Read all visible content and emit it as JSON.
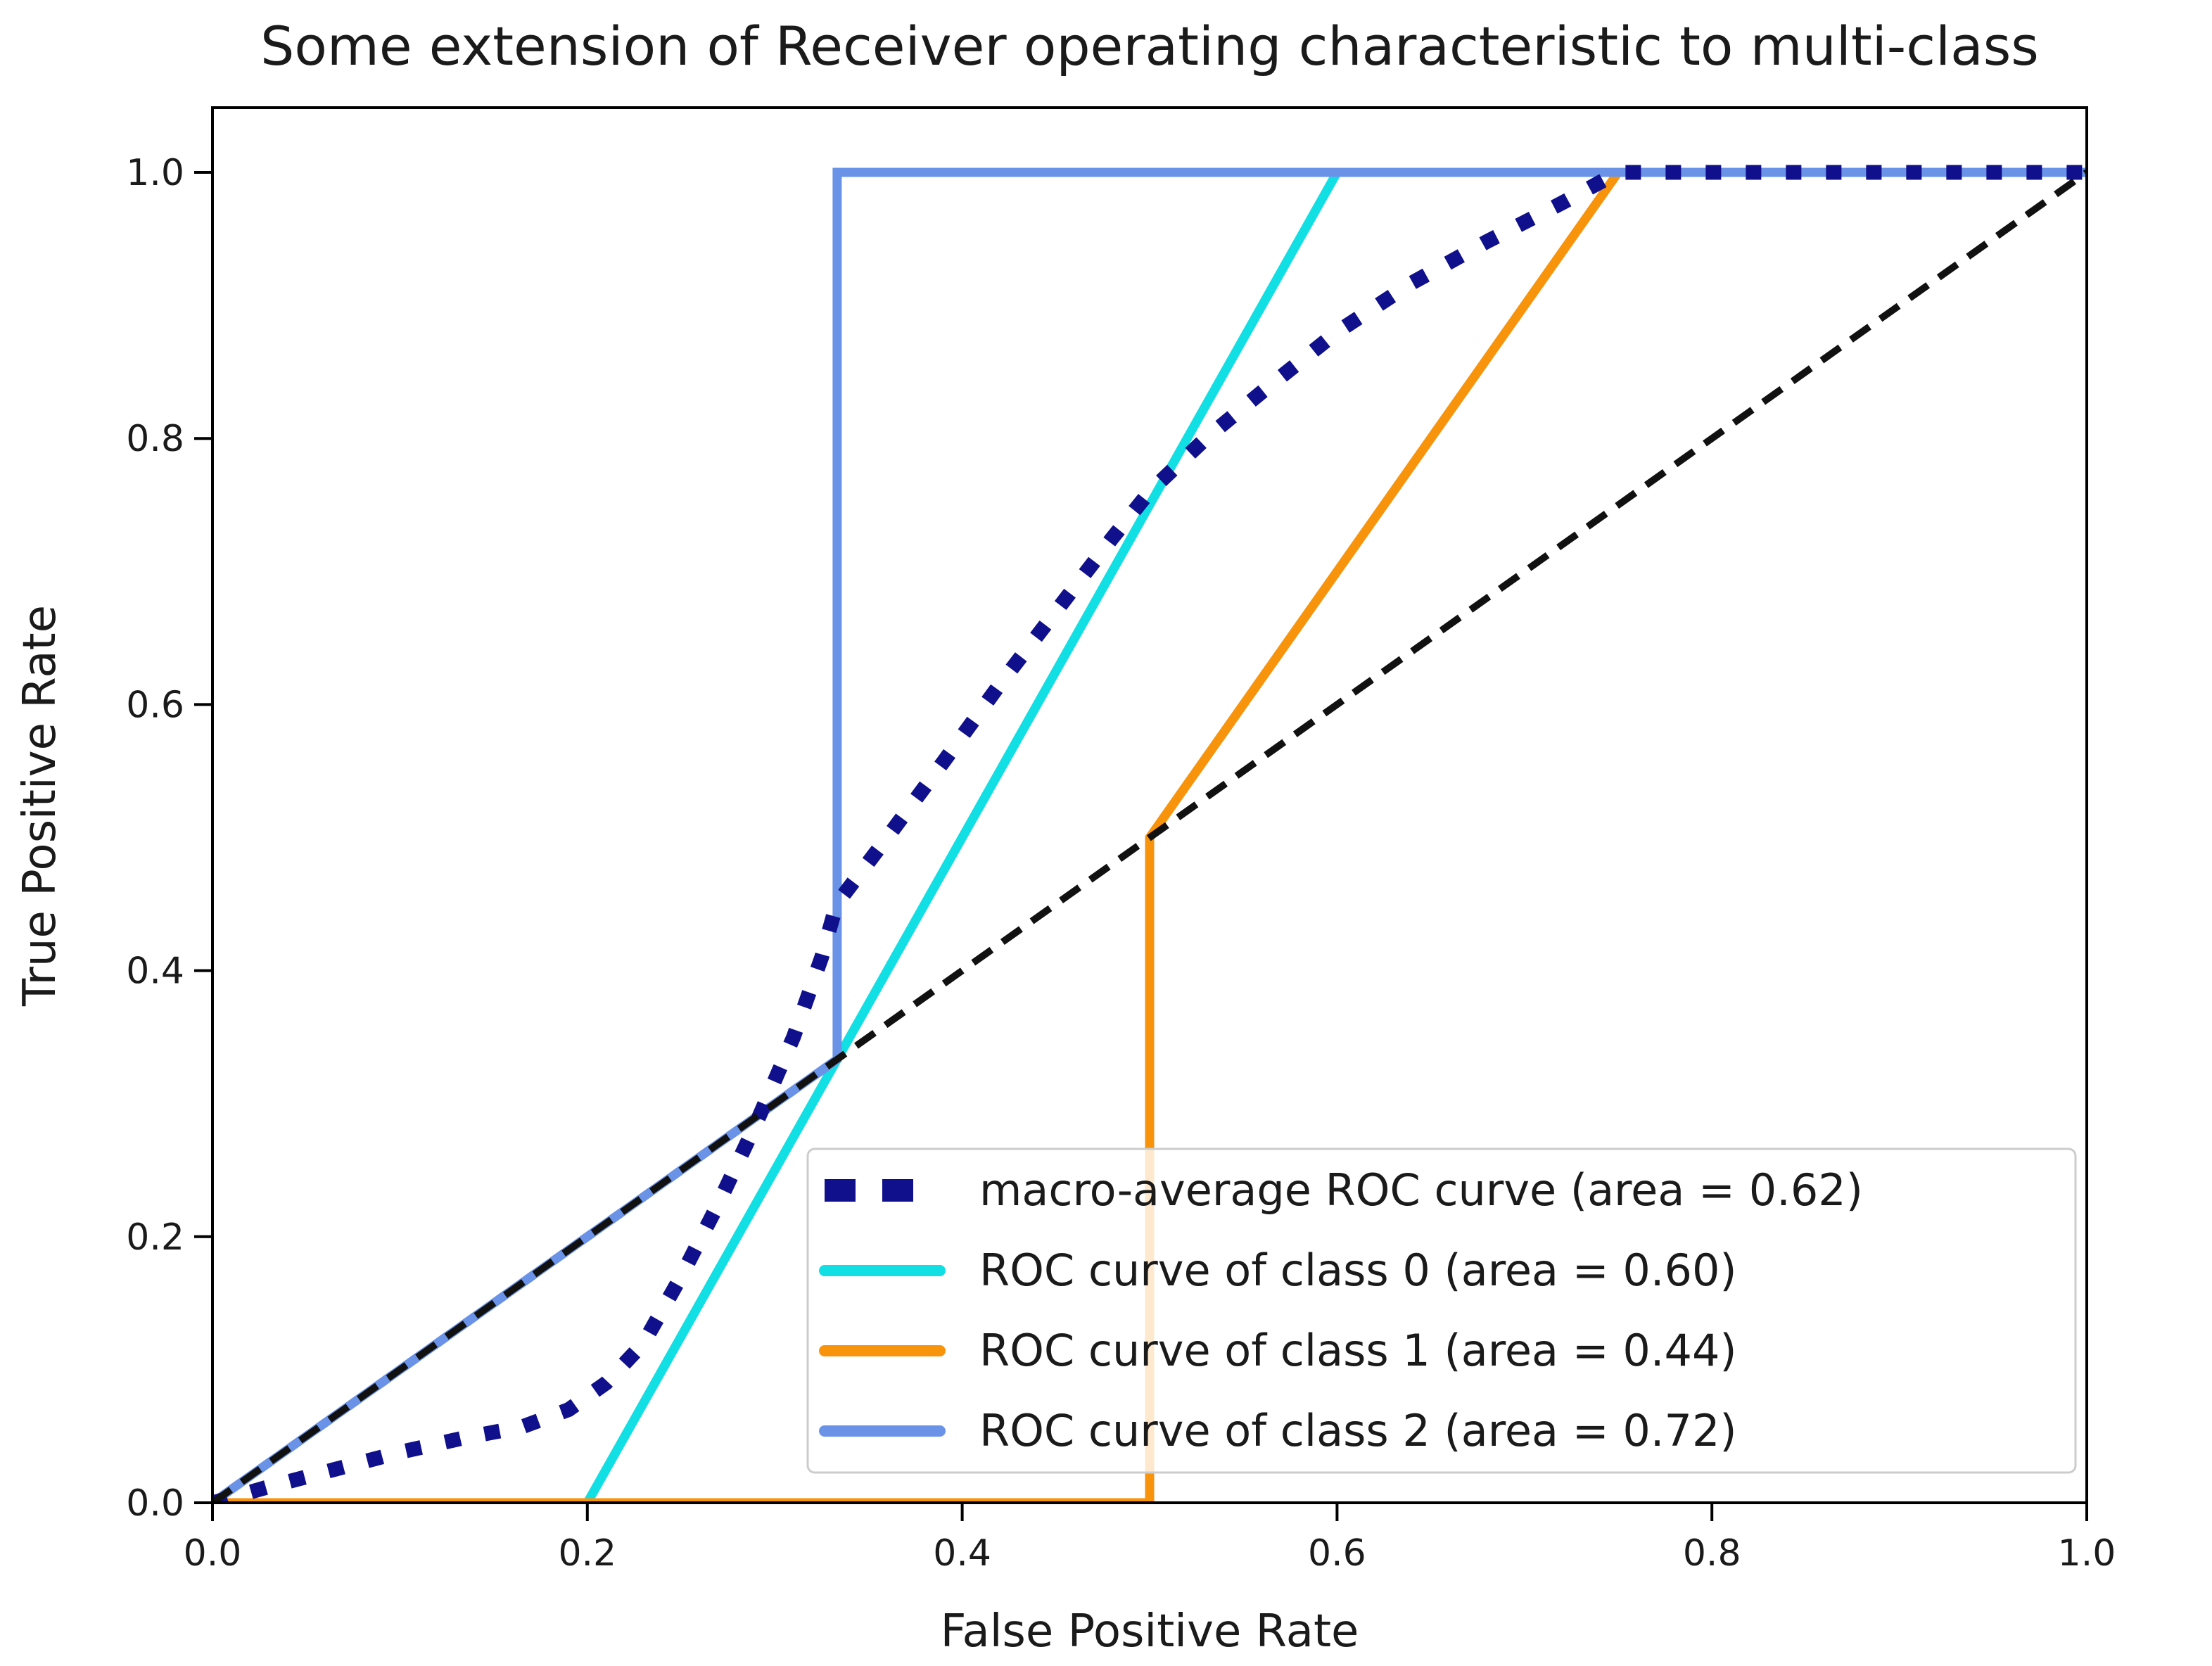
{
  "chart_data": {
    "type": "line",
    "title": "Some extension of Receiver operating characteristic to multi-class",
    "xlabel": "False Positive Rate",
    "ylabel": "True Positive Rate",
    "xlim": [
      0.0,
      1.0
    ],
    "ylim": [
      0.0,
      1.05
    ],
    "x_ticks": [
      "0.0",
      "0.2",
      "0.4",
      "0.6",
      "0.8",
      "1.0"
    ],
    "y_ticks": [
      "0.0",
      "0.2",
      "0.4",
      "0.6",
      "0.8",
      "1.0"
    ],
    "grid": false,
    "legend_position": "lower right",
    "reference_line": {
      "name": "chance diagonal",
      "style": "dashed",
      "color": "#111111",
      "points": [
        [
          0,
          0
        ],
        [
          1,
          1
        ]
      ]
    },
    "series": [
      {
        "name": "macro-average ROC curve (area = 0.62)",
        "area": 0.62,
        "color": "#10108C",
        "style": "dotted",
        "points": [
          [
            0,
            0
          ],
          [
            0.03,
            0.012
          ],
          [
            0.065,
            0.025
          ],
          [
            0.1,
            0.038
          ],
          [
            0.135,
            0.049
          ],
          [
            0.165,
            0.057
          ],
          [
            0.19,
            0.07
          ],
          [
            0.21,
            0.09
          ],
          [
            0.23,
            0.12
          ],
          [
            0.25,
            0.17
          ],
          [
            0.27,
            0.225
          ],
          [
            0.29,
            0.285
          ],
          [
            0.31,
            0.35
          ],
          [
            0.325,
            0.41
          ],
          [
            0.333,
            0.45
          ],
          [
            0.36,
            0.5
          ],
          [
            0.39,
            0.557
          ],
          [
            0.42,
            0.615
          ],
          [
            0.45,
            0.67
          ],
          [
            0.48,
            0.725
          ],
          [
            0.5,
            0.76
          ],
          [
            0.53,
            0.8
          ],
          [
            0.56,
            0.835
          ],
          [
            0.6,
            0.88
          ],
          [
            0.64,
            0.917
          ],
          [
            0.68,
            0.948
          ],
          [
            0.72,
            0.977
          ],
          [
            0.75,
            1.0
          ],
          [
            1.0,
            1.0
          ]
        ]
      },
      {
        "name": "ROC curve of class 0 (area = 0.60)",
        "area": 0.6,
        "color": "#12DFE3",
        "style": "solid",
        "points": [
          [
            0,
            0
          ],
          [
            0.2,
            0
          ],
          [
            0.6,
            1
          ],
          [
            1,
            1
          ]
        ]
      },
      {
        "name": "ROC curve of class 1 (area = 0.44)",
        "area": 0.44,
        "color": "#F8930C",
        "style": "solid",
        "points": [
          [
            0,
            0
          ],
          [
            0.5,
            0
          ],
          [
            0.5,
            0.5
          ],
          [
            0.75,
            1
          ],
          [
            1,
            1
          ]
        ]
      },
      {
        "name": "ROC curve of class 2 (area = 0.72)",
        "area": 0.72,
        "color": "#6A93E8",
        "style": "solid",
        "points": [
          [
            0,
            0
          ],
          [
            0.3333,
            0.3333
          ],
          [
            0.3333,
            1
          ],
          [
            1,
            1
          ]
        ]
      }
    ]
  }
}
